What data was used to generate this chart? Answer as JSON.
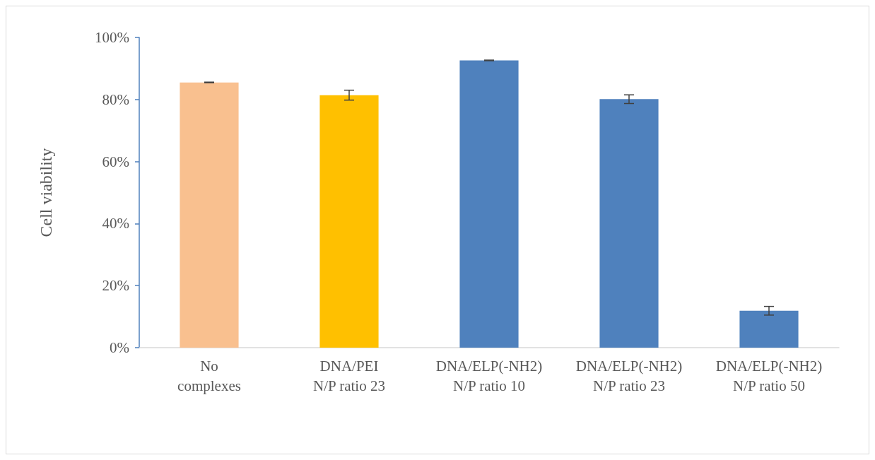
{
  "chart_data": {
    "type": "bar",
    "ylabel": "Cell viability",
    "categories": [
      "No\ncomplexes",
      "DNA/PEI\nN/P ratio 23",
      "DNA/ELP(-NH2)\nN/P ratio 10",
      "DNA/ELP(-NH2)\nN/P ratio 23",
      "DNA/ELP(-NH2)\nN/P ratio 50"
    ],
    "values": [
      85.5,
      81.4,
      92.6,
      80.1,
      11.9
    ],
    "errors": [
      0.1,
      1.6,
      0.1,
      1.4,
      1.4
    ],
    "colors": [
      "#f9c08f",
      "#ffc000",
      "#4f81bd",
      "#4f81bd",
      "#4f81bd"
    ],
    "ylim": [
      0,
      100
    ],
    "yticks": [
      {
        "value": 0,
        "label": "0%"
      },
      {
        "value": 20,
        "label": "20%"
      },
      {
        "value": 40,
        "label": "40%"
      },
      {
        "value": 60,
        "label": "60%"
      },
      {
        "value": 80,
        "label": "80%"
      },
      {
        "value": 100,
        "label": "100%"
      }
    ],
    "grid": false
  }
}
